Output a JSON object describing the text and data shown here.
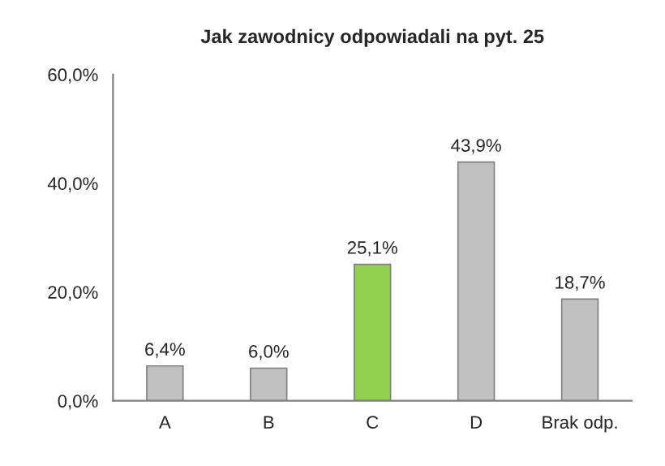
{
  "chart_data": {
    "type": "bar",
    "title": "Jak zawodnicy odpowiadali na pyt. 25",
    "categories": [
      "A",
      "B",
      "C",
      "D",
      "Brak odp."
    ],
    "values": [
      6.4,
      6.0,
      25.1,
      43.9,
      18.7
    ],
    "colors": [
      "#c0c0c0",
      "#c0c0c0",
      "#92d050",
      "#c0c0c0",
      "#c0c0c0"
    ],
    "value_labels": [
      "6,4%",
      "6,0%",
      "25,1%",
      "43,9%",
      "18,7%"
    ],
    "ylim": [
      0,
      60
    ],
    "yticks": [
      {
        "value": 0,
        "label": "0,0%"
      },
      {
        "value": 20,
        "label": "20,0%"
      },
      {
        "value": 40,
        "label": "40,0%"
      },
      {
        "value": 60,
        "label": "60,0%"
      }
    ],
    "grid": false,
    "legend": false
  }
}
